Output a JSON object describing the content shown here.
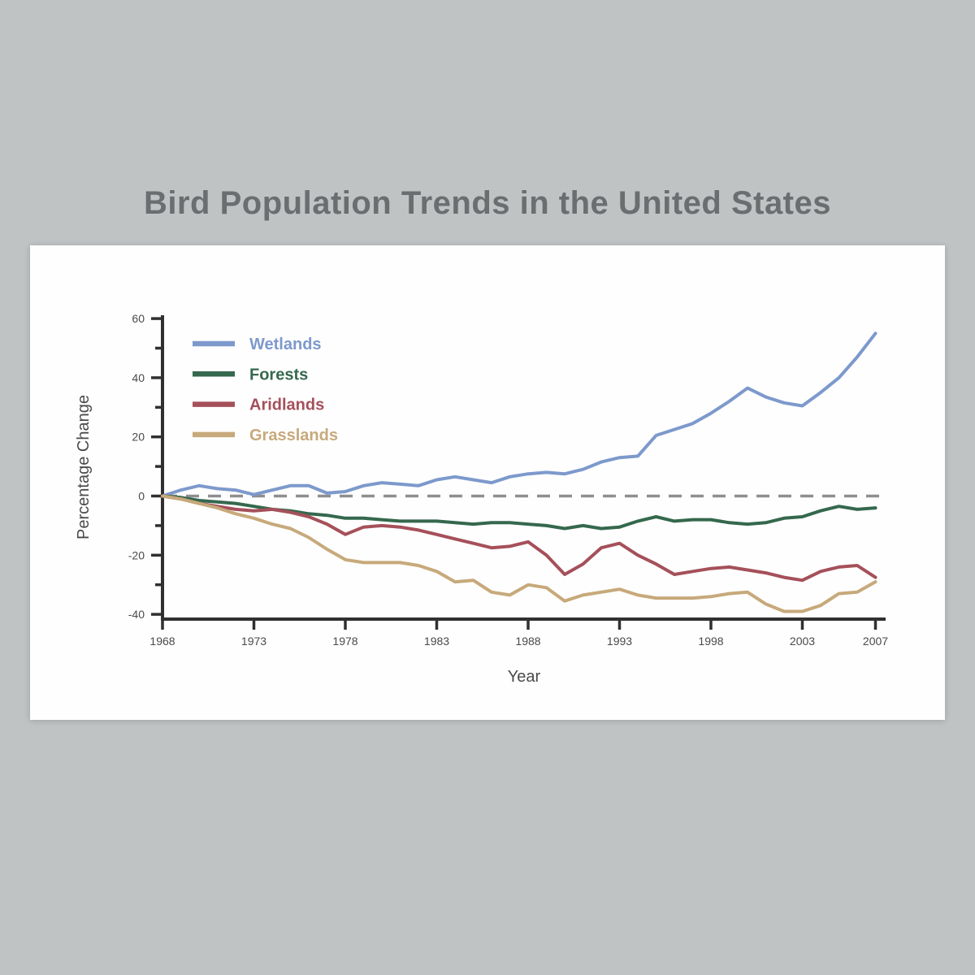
{
  "page": {
    "background_color": "#bfc3c4",
    "panel_background_color": "#fefefe"
  },
  "title": "Bird Population Trends in the United States",
  "chart_data": {
    "type": "line",
    "title": "Bird Population Trends in the United States",
    "xlabel": "Year",
    "ylabel": "Percentage Change",
    "ylim": [
      -40,
      60
    ],
    "grid": "none",
    "zero_line": "dashed",
    "legend_position": "top-left-inside",
    "title_color": "#6b6e70",
    "axis_color": "#303030",
    "tick_label_color": "#4a4a4a",
    "zero_line_color": "#8f8f8f",
    "x_tick_labels": [
      "1968",
      "1973",
      "1978",
      "1983",
      "1988",
      "1993",
      "1998",
      "2003",
      "2007"
    ],
    "y_tick_major": [
      60,
      40,
      20,
      0,
      -20,
      -40
    ],
    "y_tick_minor": [
      50,
      30,
      10,
      -10,
      -30
    ],
    "years": [
      1968,
      1969,
      1970,
      1971,
      1972,
      1973,
      1974,
      1975,
      1976,
      1977,
      1978,
      1979,
      1980,
      1981,
      1982,
      1983,
      1984,
      1985,
      1986,
      1987,
      1988,
      1989,
      1990,
      1991,
      1992,
      1993,
      1994,
      1995,
      1996,
      1997,
      1998,
      1999,
      2000,
      2001,
      2002,
      2003,
      2004,
      2005,
      2006,
      2007
    ],
    "series": [
      {
        "name": "Wetlands",
        "color": "#7d99cc",
        "values": [
          0,
          2,
          3.5,
          2.5,
          2,
          0.5,
          2,
          3.5,
          3.5,
          1,
          1.5,
          3.5,
          4.5,
          4,
          3.5,
          5.5,
          6.5,
          5.5,
          4.5,
          6.5,
          7.5,
          8,
          7.5,
          9,
          11.5,
          13,
          13.5,
          20.5,
          22.5,
          24.5,
          28,
          32,
          36.5,
          33.5,
          31.5,
          30.5,
          35,
          40,
          47,
          55
        ]
      },
      {
        "name": "Forests",
        "color": "#35684d",
        "values": [
          0,
          -0.5,
          -1.5,
          -2,
          -2.5,
          -3.5,
          -4.5,
          -5,
          -6,
          -6.5,
          -7.5,
          -7.5,
          -8,
          -8.5,
          -8.5,
          -8.5,
          -9,
          -9.5,
          -9,
          -9,
          -9.5,
          -10,
          -11,
          -10,
          -11,
          -10.5,
          -8.5,
          -7,
          -8.5,
          -8,
          -8,
          -9,
          -9.5,
          -9,
          -7.5,
          -7,
          -5,
          -3.5,
          -4.5,
          -4
        ]
      },
      {
        "name": "Aridlands",
        "color": "#a5505a",
        "values": [
          0,
          -1,
          -2.5,
          -3.5,
          -4.5,
          -5,
          -4.5,
          -5.5,
          -7,
          -9.5,
          -13,
          -10.5,
          -10,
          -10.5,
          -11.5,
          -13,
          -14.5,
          -16,
          -17.5,
          -17,
          -15.5,
          -20,
          -26.5,
          -23,
          -17.5,
          -16,
          -20,
          -23,
          -26.5,
          -25.5,
          -24.5,
          -24,
          -25,
          -26,
          -27.5,
          -28.5,
          -25.5,
          -24,
          -23.5,
          -27.5
        ]
      },
      {
        "name": "Grasslands",
        "color": "#c7a97b",
        "values": [
          0,
          -1,
          -2.5,
          -4,
          -6,
          -7.5,
          -9.5,
          -11,
          -14,
          -18,
          -21.5,
          -22.5,
          -22.5,
          -22.5,
          -23.5,
          -25.5,
          -29,
          -28.5,
          -32.5,
          -33.5,
          -30,
          -31,
          -35.5,
          -33.5,
          -32.5,
          -31.5,
          -33.5,
          -34.5,
          -34.5,
          -34.5,
          -34,
          -33,
          -32.5,
          -36.5,
          -39,
          -39,
          -37,
          -33,
          -32.5,
          -29
        ]
      }
    ]
  }
}
